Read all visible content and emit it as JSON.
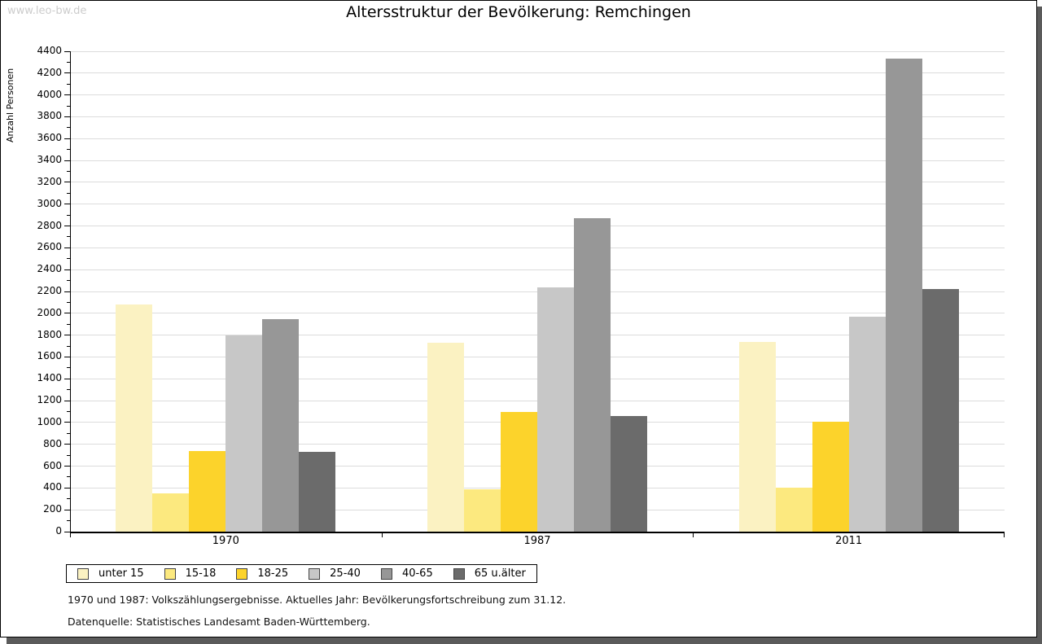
{
  "watermark": "www.leo-bw.de",
  "footer": {
    "line1": "1970 und 1987: Volkszählungsergebnisse. Aktuelles Jahr: Bevölkerungsfortschreibung zum 31.12.",
    "line2": "Datenquelle: Statistisches Landesamt Baden-Württemberg."
  },
  "chart_data": {
    "type": "bar",
    "title": "Altersstruktur der Bevölkerung: Remchingen",
    "ylabel": "Anzahl Personen",
    "xlabel": "",
    "categories": [
      "1970",
      "1987",
      "2011"
    ],
    "series": [
      {
        "name": "unter 15",
        "color": "#fbf2c2",
        "values": [
          2080,
          1730,
          1740
        ]
      },
      {
        "name": "15-18",
        "color": "#fce97f",
        "values": [
          350,
          390,
          400
        ]
      },
      {
        "name": "18-25",
        "color": "#fcd32b",
        "values": [
          740,
          1100,
          1010
        ]
      },
      {
        "name": "25-40",
        "color": "#c7c7c7",
        "values": [
          1800,
          2240,
          1970
        ]
      },
      {
        "name": "40-65",
        "color": "#979797",
        "values": [
          1950,
          2870,
          4330
        ]
      },
      {
        "name": "65 u.älter",
        "color": "#6b6b6b",
        "values": [
          730,
          1060,
          2220
        ]
      }
    ],
    "ylim": [
      0,
      4400
    ],
    "ytick_step": 200,
    "minor_tick_step": 100,
    "grid": true,
    "legend_position": "bottom"
  }
}
